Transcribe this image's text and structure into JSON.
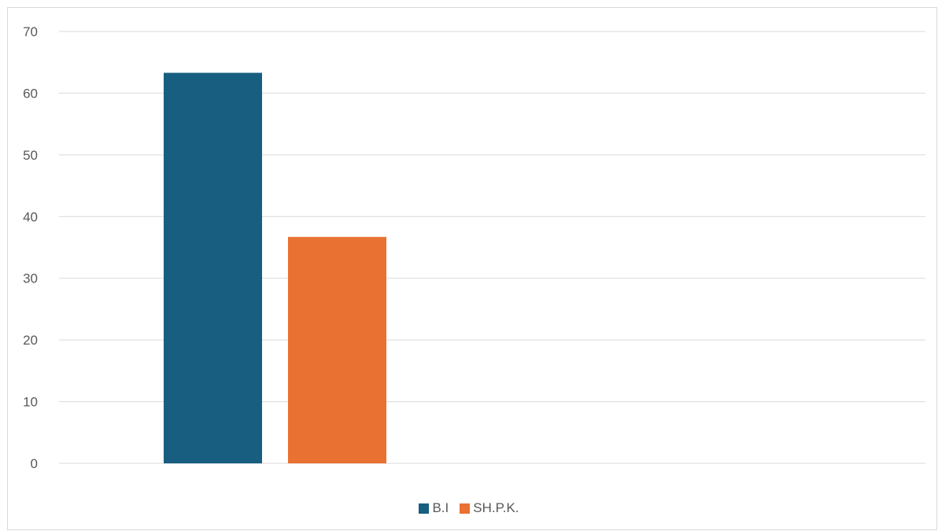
{
  "chart_data": {
    "type": "bar",
    "title": "",
    "xlabel": "",
    "ylabel": "",
    "categories": [
      ""
    ],
    "ylim": [
      0,
      70
    ],
    "yticks": [
      0,
      10,
      20,
      30,
      40,
      50,
      60,
      70
    ],
    "grid": true,
    "legend_position": "bottom",
    "series": [
      {
        "name": "B.I",
        "values": [
          63.3
        ],
        "color": "#175e80"
      },
      {
        "name": "SH.P.K.",
        "values": [
          36.7
        ],
        "color": "#e97132"
      }
    ]
  }
}
